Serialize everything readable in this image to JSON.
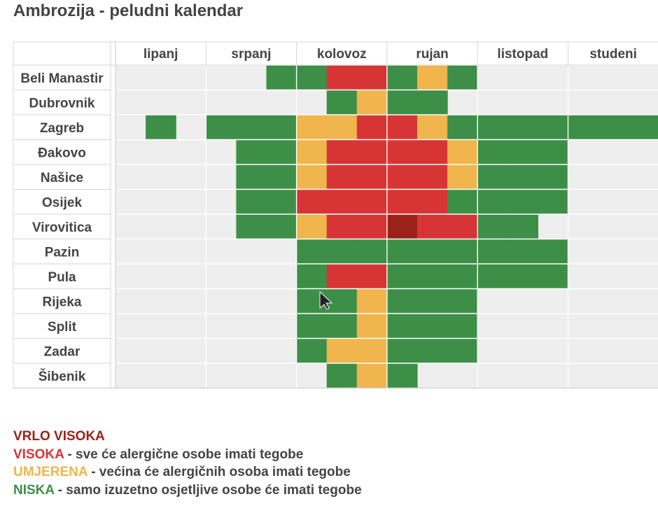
{
  "title": "Ambrozija - peludni kalendar",
  "colors": {
    "VV": "#9b2218",
    "V": "#d73535",
    "U": "#f0b54c",
    "N": "#3d8f47",
    "empty": "#eeeeee",
    "grid": "#ffffff",
    "border": "#d6d6d6"
  },
  "chart_data": {
    "type": "heatmap",
    "title": "Ambrozija - peludni kalendar",
    "months": [
      "lipanj",
      "srpanj",
      "kolovoz",
      "rujan",
      "listopad",
      "studeni"
    ],
    "periods_per_month": 3,
    "cities": [
      "Beli Manastir",
      "Dubrovnik",
      "Zagreb",
      "Đakovo",
      "Našice",
      "Osijek",
      "Virovitica",
      "Pazin",
      "Pula",
      "Rijeka",
      "Split",
      "Zadar",
      "Šibenik"
    ],
    "levels": [
      "VV",
      "V",
      "U",
      "N"
    ],
    "rows": [
      [
        "",
        "",
        "",
        "",
        "",
        "N",
        "N",
        "V",
        "V",
        "N",
        "U",
        "N",
        "",
        "",
        "",
        "",
        "",
        ""
      ],
      [
        "",
        "",
        "",
        "",
        "",
        "",
        "",
        "N",
        "U",
        "N",
        "N",
        "",
        "",
        "",
        "",
        "",
        "",
        ""
      ],
      [
        "",
        "N",
        "",
        "N",
        "N",
        "N",
        "U",
        "U",
        "V",
        "V",
        "U",
        "N",
        "N",
        "N",
        "N",
        "N",
        "N",
        "N"
      ],
      [
        "",
        "",
        "",
        "",
        "N",
        "N",
        "U",
        "V",
        "V",
        "V",
        "V",
        "U",
        "N",
        "N",
        "N",
        "",
        "",
        ""
      ],
      [
        "",
        "",
        "",
        "",
        "N",
        "N",
        "U",
        "V",
        "V",
        "V",
        "V",
        "U",
        "N",
        "N",
        "N",
        "",
        "",
        ""
      ],
      [
        "",
        "",
        "",
        "",
        "N",
        "N",
        "V",
        "V",
        "V",
        "V",
        "V",
        "N",
        "N",
        "N",
        "N",
        "",
        "",
        ""
      ],
      [
        "",
        "",
        "",
        "",
        "N",
        "N",
        "U",
        "V",
        "V",
        "VV",
        "V",
        "V",
        "N",
        "N",
        "",
        "",
        "",
        ""
      ],
      [
        "",
        "",
        "",
        "",
        "",
        "",
        "N",
        "N",
        "N",
        "N",
        "N",
        "N",
        "N",
        "N",
        "N",
        "",
        "",
        ""
      ],
      [
        "",
        "",
        "",
        "",
        "",
        "",
        "N",
        "V",
        "V",
        "N",
        "N",
        "N",
        "N",
        "N",
        "N",
        "",
        "",
        ""
      ],
      [
        "",
        "",
        "",
        "",
        "",
        "",
        "N",
        "N",
        "U",
        "N",
        "N",
        "N",
        "",
        "",
        "",
        "",
        "",
        ""
      ],
      [
        "",
        "",
        "",
        "",
        "",
        "",
        "N",
        "N",
        "U",
        "N",
        "N",
        "N",
        "",
        "",
        "",
        "",
        "",
        ""
      ],
      [
        "",
        "",
        "",
        "",
        "",
        "",
        "N",
        "U",
        "U",
        "N",
        "N",
        "N",
        "",
        "",
        "",
        "",
        "",
        ""
      ],
      [
        "",
        "",
        "",
        "",
        "",
        "",
        "",
        "N",
        "U",
        "N",
        "",
        "",
        "",
        "",
        "",
        "",
        "",
        ""
      ]
    ]
  },
  "legend": [
    {
      "label": "VRLO VISOKA",
      "desc": "",
      "color": "#9b2218"
    },
    {
      "label": "VISOKA",
      "desc": " - sve će alergične osobe imati tegobe",
      "color": "#d73535"
    },
    {
      "label": "UMJERENA",
      "desc": " - većina će alergičnih osoba imati tegobe",
      "color": "#f0b54c"
    },
    {
      "label": "NISKA",
      "desc": " - samo izuzetno osjetljive osobe će imati tegobe",
      "color": "#3d8f47"
    }
  ],
  "cursor_icon": "mouse-pointer-icon"
}
